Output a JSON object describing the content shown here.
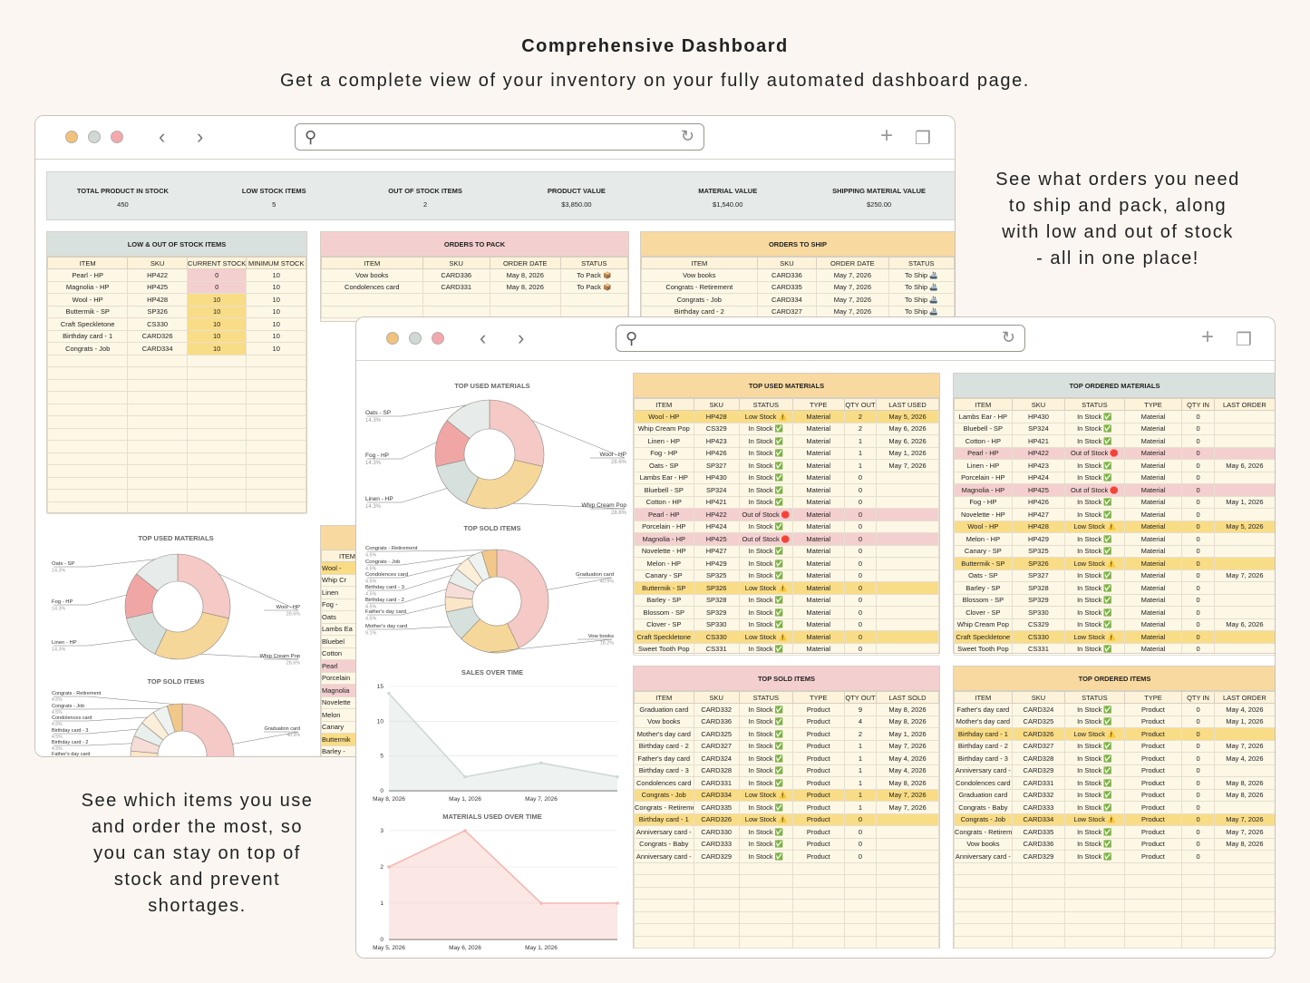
{
  "headline": "Comprehensive Dashboard",
  "subline": "Get a complete view of your inventory on your fully automated dashboard page.",
  "note_right": [
    "See what orders you need",
    "to ship and pack, along",
    "with low and out of stock",
    "- all in one place!"
  ],
  "note_left": [
    "See which items you use",
    "and order the most, so",
    "you can stay on top of",
    "stock and prevent",
    "shortages."
  ],
  "colors": {
    "traffic": [
      "#f0c27b",
      "#cfd9d6",
      "#f2a8ad"
    ]
  },
  "kpis": [
    {
      "label": "TOTAL PRODUCT IN STOCK",
      "value": "450"
    },
    {
      "label": "LOW STOCK ITEMS",
      "value": "5"
    },
    {
      "label": "OUT OF STOCK ITEMS",
      "value": "2"
    },
    {
      "label": "PRODUCT VALUE",
      "value": "$3,850.00"
    },
    {
      "label": "MATERIAL VALUE",
      "value": "$1,540.00"
    },
    {
      "label": "SHIPPING MATERIAL VALUE",
      "value": "$250.00"
    }
  ],
  "low_stock": {
    "title": "LOW & OUT OF STOCK ITEMS",
    "headers": [
      "ITEM",
      "SKU",
      "CURRENT STOCK",
      "MINIMUM STOCK"
    ],
    "rows": [
      [
        "Pearl - HP",
        "HP422",
        "0",
        "10"
      ],
      [
        "Magnolia - HP",
        "HP425",
        "0",
        "10"
      ],
      [
        "Wool - HP",
        "HP428",
        "10",
        "10"
      ],
      [
        "Buttermik - SP",
        "SP326",
        "10",
        "10"
      ],
      [
        "Craft Speckletone",
        "CS330",
        "10",
        "10"
      ],
      [
        "Birthday card - 1",
        "CARD326",
        "10",
        "10"
      ],
      [
        "Congrats - Job",
        "CARD334",
        "10",
        "10"
      ]
    ]
  },
  "orders_pack": {
    "title": "ORDERS TO PACK",
    "headers": [
      "ITEM",
      "SKU",
      "ORDER DATE",
      "STATUS"
    ],
    "rows": [
      [
        "Vow books",
        "CARD336",
        "May 8, 2026",
        "To Pack 📦"
      ],
      [
        "Condolences card",
        "CARD331",
        "May 8, 2026",
        "To Pack 📦"
      ]
    ]
  },
  "orders_ship": {
    "title": "ORDERS TO SHIP",
    "headers": [
      "ITEM",
      "SKU",
      "ORDER DATE",
      "STATUS"
    ],
    "rows": [
      [
        "Vow books",
        "CARD336",
        "May 7, 2026",
        "To Ship 🚢"
      ],
      [
        "Congrats - Retirement",
        "CARD335",
        "May 7, 2026",
        "To Ship 🚢"
      ],
      [
        "Congrats - Job",
        "CARD334",
        "May 7, 2026",
        "To Ship 🚢"
      ],
      [
        "Birthday card - 2",
        "CARD327",
        "May 7, 2026",
        "To Ship 🚢"
      ]
    ]
  },
  "back_partial_rows": [
    "Wool -",
    "Whip Cr",
    "Linen",
    "Fog -",
    "Oats",
    "Lambs Ea",
    "Bluebel",
    "Cotton",
    "Pearl",
    "Porcelain",
    "Magnolia",
    "Novelette",
    "Melon",
    "Canary",
    "Buttermik",
    "Barley -"
  ],
  "back_partial_head": "ITEM",
  "chart_data": [
    {
      "type": "pie",
      "title": "TOP USED MATERIALS",
      "labels": [
        "Wool - HP",
        "Whip Cream Pop",
        "Linen - HP",
        "Fog - HP",
        "Oats - SP"
      ],
      "values": [
        28.6,
        28.6,
        14.3,
        14.3,
        14.3
      ],
      "value_labels": [
        "28.6%",
        "28.6%",
        "14.3%",
        "14.3%",
        "14.3%"
      ],
      "colors": [
        "#f4c9c6",
        "#f6d79a",
        "#d6e0dc",
        "#f1a6a6",
        "#e7ebe9"
      ]
    },
    {
      "type": "pie",
      "title": "TOP SOLD ITEMS",
      "labels": [
        "Graduation card",
        "Vow books",
        "Mother's day card",
        "Father's day card",
        "Birthday card - 2",
        "Birthday card - 3",
        "Condolences card",
        "Congrats - Job",
        "Congrats - Retirement"
      ],
      "values": [
        40.9,
        18.2,
        9.1,
        4.5,
        4.5,
        4.5,
        4.5,
        4.5,
        4.5
      ],
      "value_labels": [
        "40.9%",
        "18.2%",
        "9.1%",
        "4.5%",
        "4.5%",
        "4.5%",
        "4.5%",
        "4.5%",
        "4.5%"
      ],
      "colors": [
        "#f4c9c6",
        "#f6d79a",
        "#d6e0dc",
        "#fbe6c8",
        "#f6ddd8",
        "#e9efec",
        "#fcefd9",
        "#eef2f0",
        "#f2c88a"
      ]
    },
    {
      "type": "area",
      "title": "SALES OVER TIME",
      "x": [
        "May 8, 2026",
        "May 1, 2026",
        "May 7, 2026",
        ""
      ],
      "xticks": [
        "May 8, 2026",
        "May 1, 2026",
        "May 7, 2026"
      ],
      "y": [
        14,
        2,
        4,
        2
      ],
      "ylim": [
        0,
        15
      ],
      "yticks": [
        "0",
        "5",
        "10",
        "15"
      ],
      "color": "#cfd9d6"
    },
    {
      "type": "area",
      "title": "MATERIALS USED OVER TIME",
      "x": [
        "May 5, 2026",
        "May 6, 2026",
        "May 1, 2026",
        ""
      ],
      "xticks": [
        "May 5, 2026",
        "May 6, 2026",
        "May 1, 2026"
      ],
      "y": [
        2,
        3,
        1,
        1
      ],
      "ylim": [
        0,
        3
      ],
      "yticks": [
        "0",
        "1",
        "2",
        "3"
      ],
      "color": "#f4b9b3"
    }
  ],
  "top_used": {
    "title": "TOP USED MATERIALS",
    "headers": [
      "ITEM",
      "SKU",
      "STATUS",
      "TYPE",
      "QTY OUT",
      "LAST USED"
    ],
    "rows": [
      [
        "Wool - HP",
        "HP428",
        "Low Stock ⚠️",
        "Material",
        "2",
        "May 5, 2026",
        "yel"
      ],
      [
        "Whip Cream Pop",
        "CS329",
        "In Stock ✅",
        "Material",
        "2",
        "May 6, 2026",
        ""
      ],
      [
        "Linen - HP",
        "HP423",
        "In Stock ✅",
        "Material",
        "1",
        "May 6, 2026",
        ""
      ],
      [
        "Fog - HP",
        "HP426",
        "In Stock ✅",
        "Material",
        "1",
        "May 1, 2026",
        ""
      ],
      [
        "Oats - SP",
        "SP327",
        "In Stock ✅",
        "Material",
        "1",
        "May 7, 2026",
        ""
      ],
      [
        "Lambs Ear - HP",
        "HP430",
        "In Stock ✅",
        "Material",
        "0",
        "",
        ""
      ],
      [
        "Bluebell - SP",
        "SP324",
        "In Stock ✅",
        "Material",
        "0",
        "",
        ""
      ],
      [
        "Cotton - HP",
        "HP421",
        "In Stock ✅",
        "Material",
        "0",
        "",
        ""
      ],
      [
        "Pearl - HP",
        "HP422",
        "Out of Stock 🛑",
        "Material",
        "0",
        "",
        "pink"
      ],
      [
        "Porcelain - HP",
        "HP424",
        "In Stock ✅",
        "Material",
        "0",
        "",
        ""
      ],
      [
        "Magnolia - HP",
        "HP425",
        "Out of Stock 🛑",
        "Material",
        "0",
        "",
        "pink"
      ],
      [
        "Novelette - HP",
        "HP427",
        "In Stock ✅",
        "Material",
        "0",
        "",
        ""
      ],
      [
        "Melon - HP",
        "HP429",
        "In Stock ✅",
        "Material",
        "0",
        "",
        ""
      ],
      [
        "Canary - SP",
        "SP325",
        "In Stock ✅",
        "Material",
        "0",
        "",
        ""
      ],
      [
        "Buttermik - SP",
        "SP326",
        "Low Stock ⚠️",
        "Material",
        "0",
        "",
        "yel"
      ],
      [
        "Barley - SP",
        "SP328",
        "In Stock ✅",
        "Material",
        "0",
        "",
        ""
      ],
      [
        "Blossom - SP",
        "SP329",
        "In Stock ✅",
        "Material",
        "0",
        "",
        ""
      ],
      [
        "Clover - SP",
        "SP330",
        "In Stock ✅",
        "Material",
        "0",
        "",
        ""
      ],
      [
        "Craft Speckletone",
        "CS330",
        "Low Stock ⚠️",
        "Material",
        "0",
        "",
        "yel"
      ],
      [
        "Sweet Tooth Pop",
        "CS331",
        "In Stock ✅",
        "Material",
        "0",
        "",
        ""
      ]
    ]
  },
  "top_ordered_mat": {
    "title": "TOP ORDERED MATERIALS",
    "headers": [
      "ITEM",
      "SKU",
      "STATUS",
      "TYPE",
      "QTY IN",
      "LAST ORDER"
    ],
    "rows": [
      [
        "Lambs Ear - HP",
        "HP430",
        "In Stock ✅",
        "Material",
        "0",
        "",
        ""
      ],
      [
        "Bluebell - SP",
        "SP324",
        "In Stock ✅",
        "Material",
        "0",
        "",
        ""
      ],
      [
        "Cotton - HP",
        "HP421",
        "In Stock ✅",
        "Material",
        "0",
        "",
        ""
      ],
      [
        "Pearl - HP",
        "HP422",
        "Out of Stock 🛑",
        "Material",
        "0",
        "",
        "pink"
      ],
      [
        "Linen - HP",
        "HP423",
        "In Stock ✅",
        "Material",
        "0",
        "May 6, 2026",
        ""
      ],
      [
        "Porcelain - HP",
        "HP424",
        "In Stock ✅",
        "Material",
        "0",
        "",
        ""
      ],
      [
        "Magnolia - HP",
        "HP425",
        "Out of Stock 🛑",
        "Material",
        "0",
        "",
        "pink"
      ],
      [
        "Fog - HP",
        "HP426",
        "In Stock ✅",
        "Material",
        "0",
        "May 1, 2026",
        ""
      ],
      [
        "Novelette - HP",
        "HP427",
        "In Stock ✅",
        "Material",
        "0",
        "",
        ""
      ],
      [
        "Wool - HP",
        "HP428",
        "Low Stock ⚠️",
        "Material",
        "0",
        "May 5, 2026",
        "yel"
      ],
      [
        "Melon - HP",
        "HP429",
        "In Stock ✅",
        "Material",
        "0",
        "",
        ""
      ],
      [
        "Canary - SP",
        "SP325",
        "In Stock ✅",
        "Material",
        "0",
        "",
        ""
      ],
      [
        "Buttermik - SP",
        "SP326",
        "Low Stock ⚠️",
        "Material",
        "0",
        "",
        "yel"
      ],
      [
        "Oats - SP",
        "SP327",
        "In Stock ✅",
        "Material",
        "0",
        "May 7, 2026",
        ""
      ],
      [
        "Barley - SP",
        "SP328",
        "In Stock ✅",
        "Material",
        "0",
        "",
        ""
      ],
      [
        "Blossom - SP",
        "SP329",
        "In Stock ✅",
        "Material",
        "0",
        "",
        ""
      ],
      [
        "Clover - SP",
        "SP330",
        "In Stock ✅",
        "Material",
        "0",
        "",
        ""
      ],
      [
        "Whip Cream Pop",
        "CS329",
        "In Stock ✅",
        "Material",
        "0",
        "May 6, 2026",
        ""
      ],
      [
        "Craft Speckletone",
        "CS330",
        "Low Stock ⚠️",
        "Material",
        "0",
        "",
        "yel"
      ],
      [
        "Sweet Tooth Pop",
        "CS331",
        "In Stock ✅",
        "Material",
        "0",
        "",
        ""
      ]
    ]
  },
  "top_sold": {
    "title": "TOP SOLD ITEMS",
    "headers": [
      "ITEM",
      "SKU",
      "STATUS",
      "TYPE",
      "QTY OUT",
      "LAST SOLD"
    ],
    "rows": [
      [
        "Graduation card",
        "CARD332",
        "In Stock ✅",
        "Product",
        "9",
        "May 8, 2026",
        ""
      ],
      [
        "Vow books",
        "CARD336",
        "In Stock ✅",
        "Product",
        "4",
        "May 8, 2026",
        ""
      ],
      [
        "Mother's day card",
        "CARD325",
        "In Stock ✅",
        "Product",
        "2",
        "May 1, 2026",
        ""
      ],
      [
        "Birthday card - 2",
        "CARD327",
        "In Stock ✅",
        "Product",
        "1",
        "May 7, 2026",
        ""
      ],
      [
        "Father's day card",
        "CARD324",
        "In Stock ✅",
        "Product",
        "1",
        "May 4, 2026",
        ""
      ],
      [
        "Birthday card - 3",
        "CARD328",
        "In Stock ✅",
        "Product",
        "1",
        "May 4, 2026",
        ""
      ],
      [
        "Condolences card",
        "CARD331",
        "In Stock ✅",
        "Product",
        "1",
        "May 8, 2026",
        ""
      ],
      [
        "Congrats - Job",
        "CARD334",
        "Low Stock ⚠️",
        "Product",
        "1",
        "May 7, 2026",
        "yel"
      ],
      [
        "Congrats - Retireme",
        "CARD335",
        "In Stock ✅",
        "Product",
        "1",
        "May 7, 2026",
        ""
      ],
      [
        "Birthday card - 1",
        "CARD326",
        "Low Stock ⚠️",
        "Product",
        "0",
        "",
        "yel"
      ],
      [
        "Anniversary card -",
        "CARD330",
        "In Stock ✅",
        "Product",
        "0",
        "",
        ""
      ],
      [
        "Congrats - Baby",
        "CARD333",
        "In Stock ✅",
        "Product",
        "0",
        "",
        ""
      ],
      [
        "Anniversary card -",
        "CARD329",
        "In Stock ✅",
        "Product",
        "0",
        "",
        ""
      ]
    ]
  },
  "top_ordered_items": {
    "title": "TOP ORDERED ITEMS",
    "headers": [
      "ITEM",
      "SKU",
      "STATUS",
      "TYPE",
      "QTY IN",
      "LAST ORDER"
    ],
    "rows": [
      [
        "Father's day card",
        "CARD324",
        "In Stock ✅",
        "Product",
        "0",
        "May 4, 2026",
        ""
      ],
      [
        "Mother's day card",
        "CARD325",
        "In Stock ✅",
        "Product",
        "0",
        "May 1, 2026",
        ""
      ],
      [
        "Birthday card - 1",
        "CARD326",
        "Low Stock ⚠️",
        "Product",
        "0",
        "",
        "yel"
      ],
      [
        "Birthday card - 2",
        "CARD327",
        "In Stock ✅",
        "Product",
        "0",
        "May 7, 2026",
        ""
      ],
      [
        "Birthday card - 3",
        "CARD328",
        "In Stock ✅",
        "Product",
        "0",
        "May 4, 2026",
        ""
      ],
      [
        "Anniversary card -",
        "CARD329",
        "In Stock ✅",
        "Product",
        "0",
        "",
        ""
      ],
      [
        "Condolences card",
        "CARD331",
        "In Stock ✅",
        "Product",
        "0",
        "May 8, 2026",
        ""
      ],
      [
        "Graduation card",
        "CARD332",
        "In Stock ✅",
        "Product",
        "0",
        "May 8, 2026",
        ""
      ],
      [
        "Congrats - Baby",
        "CARD333",
        "In Stock ✅",
        "Product",
        "0",
        "",
        ""
      ],
      [
        "Congrats - Job",
        "CARD334",
        "Low Stock ⚠️",
        "Product",
        "0",
        "May 7, 2026",
        "yel"
      ],
      [
        "Congrats - Retireme",
        "CARD335",
        "In Stock ✅",
        "Product",
        "0",
        "May 7, 2026",
        ""
      ],
      [
        "Vow books",
        "CARD336",
        "In Stock ✅",
        "Product",
        "0",
        "May 8, 2026",
        ""
      ],
      [
        "Anniversary card -",
        "CARD329",
        "In Stock ✅",
        "Product",
        "0",
        "",
        ""
      ]
    ]
  }
}
